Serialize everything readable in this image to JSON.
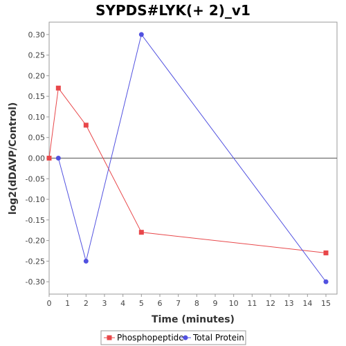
{
  "chart_data": {
    "type": "line",
    "title": "SYPDS#LYK(+ 2)_v1",
    "xlabel": "Time (minutes)",
    "ylabel": "log2(dDAVP/Control)",
    "xlim": [
      0,
      15.6
    ],
    "ylim": [
      -0.33,
      0.33
    ],
    "xticks": [
      0,
      1,
      2,
      3,
      4,
      5,
      6,
      7,
      8,
      9,
      10,
      11,
      12,
      13,
      14,
      15
    ],
    "yticks": [
      0.3,
      0.25,
      0.2,
      0.15,
      0.1,
      0.05,
      0.0,
      -0.05,
      -0.1,
      -0.15,
      -0.2,
      -0.25,
      -0.3
    ],
    "grid": false,
    "zero_line": true,
    "legend_position": "bottom",
    "series": [
      {
        "name": "Phosphopeptide",
        "color": "#e8474a",
        "marker": "square",
        "x": [
          0,
          0.5,
          2,
          5,
          15
        ],
        "y": [
          0.0,
          0.17,
          0.08,
          -0.18,
          -0.23
        ]
      },
      {
        "name": "Total Protein",
        "color": "#5151e0",
        "marker": "circle",
        "x": [
          0.5,
          2,
          5,
          15
        ],
        "y": [
          0.0,
          -0.25,
          0.3,
          -0.3
        ]
      }
    ]
  }
}
